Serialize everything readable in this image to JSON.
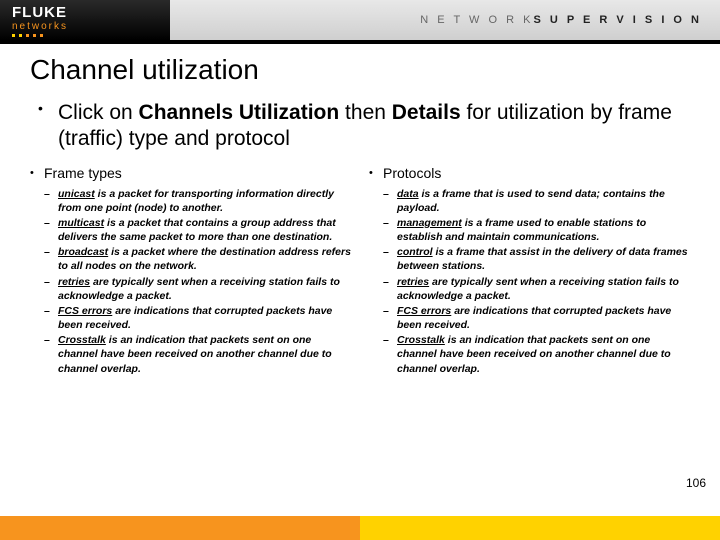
{
  "colors": {
    "brand_orange": "#f7941e",
    "brand_yellow": "#ffd200",
    "footer_left": "#f7941e",
    "footer_right": "#ffd200"
  },
  "header": {
    "logo_main": "FLUKE",
    "logo_sub": "networks",
    "tagline_light": "N E T W O R K",
    "tagline_bold": "S U P E R V I S I O N"
  },
  "title": "Channel utilization",
  "lead": {
    "pre": "Click on ",
    "b1": "Channels Utilization",
    "mid": " then ",
    "b2": "Details",
    "post": " for utilization by frame (traffic) type and protocol"
  },
  "left": {
    "heading": "Frame types",
    "items": [
      {
        "term": "unicast",
        "desc": " is a packet for transporting information directly from one point (node) to another."
      },
      {
        "term": "multicast",
        "desc": " is a packet that contains a group address that delivers the same packet to more than one destination."
      },
      {
        "term": "broadcast",
        "desc": " is a packet where the destination address refers to all nodes on the network."
      },
      {
        "term": "retries",
        "desc": " are typically sent when a receiving station fails to acknowledge a packet."
      },
      {
        "term": "FCS errors",
        "desc": " are indications that corrupted packets have been received."
      },
      {
        "term": "Crosstalk",
        "desc": " is an indication that packets sent on one channel have been received on another channel due to channel overlap."
      }
    ]
  },
  "right": {
    "heading": "Protocols",
    "items": [
      {
        "term": "data",
        "desc": " is a frame that is used to send data; contains the payload."
      },
      {
        "term": "management",
        "desc": " is a frame used to enable stations to establish and maintain communications."
      },
      {
        "term": "control",
        "desc": " is a frame that assist in the delivery of data frames between stations."
      },
      {
        "term": "retries",
        "desc": " are typically sent when a receiving station fails to acknowledge a packet."
      },
      {
        "term": "FCS errors",
        "desc": " are indications that corrupted packets have been received."
      },
      {
        "term": "Crosstalk",
        "desc": " is an indication that packets sent on one channel have been received on another channel due to channel overlap."
      }
    ]
  },
  "page_number": "106"
}
